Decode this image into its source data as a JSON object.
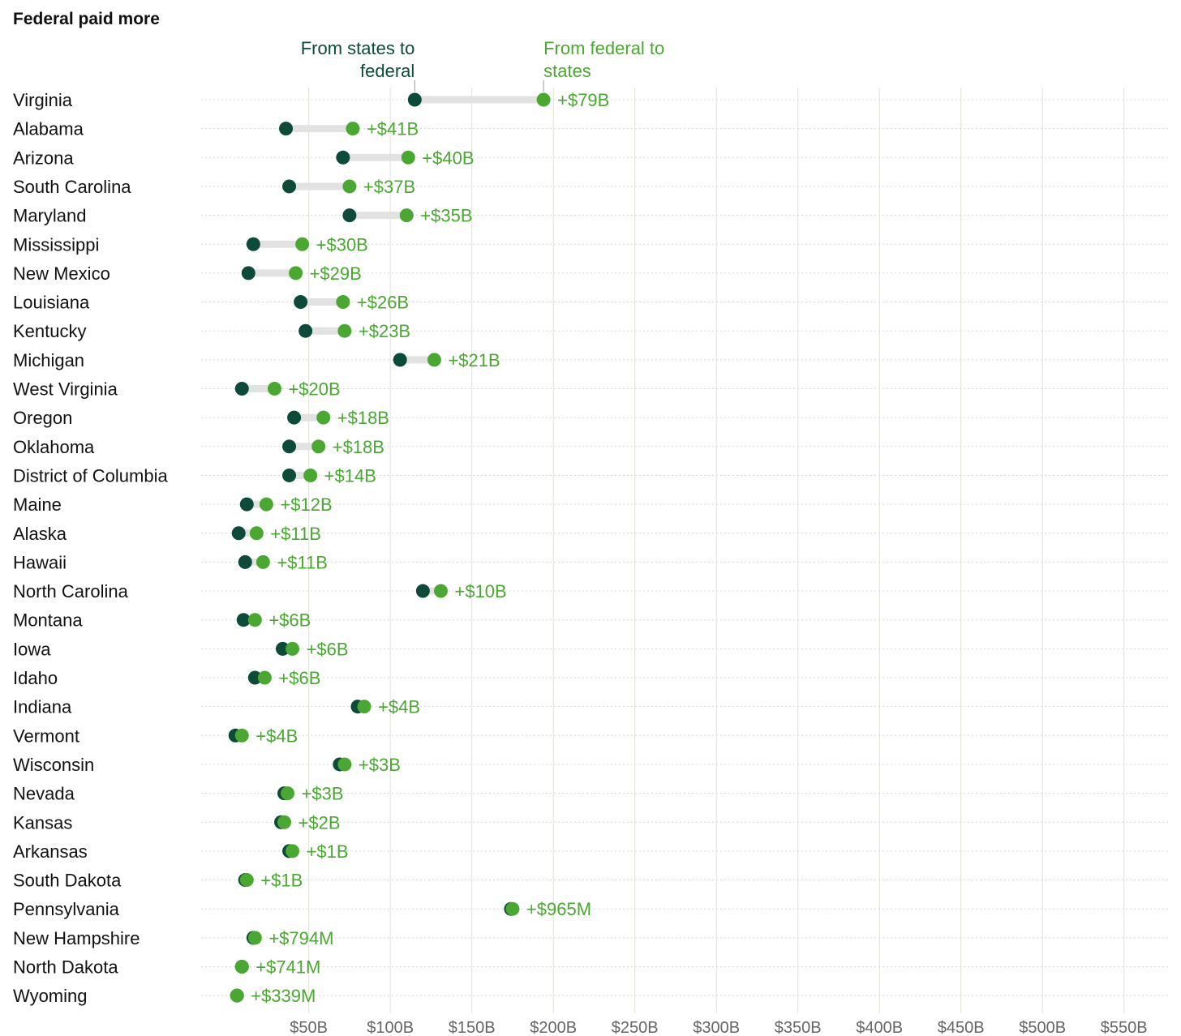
{
  "chart_data": {
    "type": "dumbbell",
    "title": "Federal paid more",
    "legend": {
      "from_states": "From states to federal",
      "from_federal": "From federal to states"
    },
    "x_tick_labels": [
      "$50B",
      "$100B",
      "$150B",
      "$200B",
      "$250B",
      "$300B",
      "$350B",
      "$400B",
      "$450B",
      "$500B",
      "$550B"
    ],
    "x_ticks": [
      50,
      100,
      150,
      200,
      250,
      300,
      350,
      400,
      450,
      500,
      550
    ],
    "xlim": [
      -16,
      578
    ],
    "units": "billions USD",
    "colors": {
      "from_states": "#0d4a3a",
      "from_federal": "#4aa832",
      "connector": "#e2e2e2",
      "grid": "#dde3d6"
    },
    "series": [
      {
        "name": "From states to federal"
      },
      {
        "name": "From federal to states"
      }
    ],
    "rows": [
      {
        "state": "Virginia",
        "to_federal": 115,
        "from_federal": 194,
        "diff_label": "+$79B"
      },
      {
        "state": "Alabama",
        "to_federal": 36,
        "from_federal": 77,
        "diff_label": "+$41B"
      },
      {
        "state": "Arizona",
        "to_federal": 71,
        "from_federal": 111,
        "diff_label": "+$40B"
      },
      {
        "state": "South Carolina",
        "to_federal": 38,
        "from_federal": 75,
        "diff_label": "+$37B"
      },
      {
        "state": "Maryland",
        "to_federal": 75,
        "from_federal": 110,
        "diff_label": "+$35B"
      },
      {
        "state": "Mississippi",
        "to_federal": 16,
        "from_federal": 46,
        "diff_label": "+$30B"
      },
      {
        "state": "New Mexico",
        "to_federal": 13,
        "from_federal": 42,
        "diff_label": "+$29B"
      },
      {
        "state": "Louisiana",
        "to_federal": 45,
        "from_federal": 71,
        "diff_label": "+$26B"
      },
      {
        "state": "Kentucky",
        "to_federal": 48,
        "from_federal": 72,
        "diff_label": "+$23B"
      },
      {
        "state": "Michigan",
        "to_federal": 106,
        "from_federal": 127,
        "diff_label": "+$21B"
      },
      {
        "state": "West Virginia",
        "to_federal": 9,
        "from_federal": 29,
        "diff_label": "+$20B"
      },
      {
        "state": "Oregon",
        "to_federal": 41,
        "from_federal": 59,
        "diff_label": "+$18B"
      },
      {
        "state": "Oklahoma",
        "to_federal": 38,
        "from_federal": 56,
        "diff_label": "+$18B"
      },
      {
        "state": "District of Columbia",
        "to_federal": 38,
        "from_federal": 51,
        "diff_label": "+$14B"
      },
      {
        "state": "Maine",
        "to_federal": 12,
        "from_federal": 24,
        "diff_label": "+$12B"
      },
      {
        "state": "Alaska",
        "to_federal": 7,
        "from_federal": 18,
        "diff_label": "+$11B"
      },
      {
        "state": "Hawaii",
        "to_federal": 11,
        "from_federal": 22,
        "diff_label": "+$11B"
      },
      {
        "state": "North Carolina",
        "to_federal": 120,
        "from_federal": 131,
        "diff_label": "+$10B"
      },
      {
        "state": "Montana",
        "to_federal": 10,
        "from_federal": 17,
        "diff_label": "+$6B"
      },
      {
        "state": "Iowa",
        "to_federal": 34,
        "from_federal": 40,
        "diff_label": "+$6B"
      },
      {
        "state": "Idaho",
        "to_federal": 17,
        "from_federal": 23,
        "diff_label": "+$6B"
      },
      {
        "state": "Indiana",
        "to_federal": 80,
        "from_federal": 84,
        "diff_label": "+$4B"
      },
      {
        "state": "Vermont",
        "to_federal": 5,
        "from_federal": 9,
        "diff_label": "+$4B"
      },
      {
        "state": "Wisconsin",
        "to_federal": 69,
        "from_federal": 72,
        "diff_label": "+$3B"
      },
      {
        "state": "Nevada",
        "to_federal": 35,
        "from_federal": 37,
        "diff_label": "+$3B"
      },
      {
        "state": "Kansas",
        "to_federal": 33,
        "from_federal": 35,
        "diff_label": "+$2B"
      },
      {
        "state": "Arkansas",
        "to_federal": 38,
        "from_federal": 40,
        "diff_label": "+$1B"
      },
      {
        "state": "South Dakota",
        "to_federal": 11,
        "from_federal": 12,
        "diff_label": "+$1B"
      },
      {
        "state": "Pennsylvania",
        "to_federal": 174,
        "from_federal": 175,
        "diff_label": "+$965M"
      },
      {
        "state": "New Hampshire",
        "to_federal": 16,
        "from_federal": 17,
        "diff_label": "+$794M"
      },
      {
        "state": "North Dakota",
        "to_federal": 9,
        "from_federal": 9,
        "diff_label": "+$741M"
      },
      {
        "state": "Wyoming",
        "to_federal": 6,
        "from_federal": 6,
        "diff_label": "+$339M"
      }
    ]
  }
}
